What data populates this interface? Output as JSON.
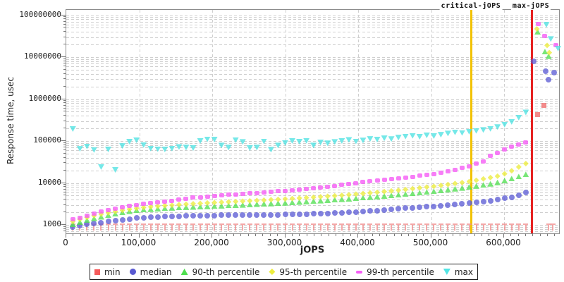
{
  "chart_data": {
    "type": "scatter",
    "title": "",
    "xlabel": "jOPS",
    "ylabel": "Response time, usec",
    "x_axis": {
      "min": 0,
      "max": 675000,
      "major_ticks": [
        0,
        100000,
        200000,
        300000,
        400000,
        500000,
        600000
      ],
      "tick_labels": [
        "0",
        "100,000",
        "200,000",
        "300,000",
        "400,000",
        "500,000",
        "600,000"
      ],
      "minor_tick_step": 10000,
      "grid_values": [
        100000,
        200000,
        300000,
        400000,
        500000,
        600000
      ]
    },
    "y_axis": {
      "scale": "log",
      "min": 630,
      "max": 130000000,
      "major_ticks": [
        1000,
        10000,
        100000,
        1000000,
        10000000,
        100000000
      ],
      "tick_labels": [
        "1000",
        "10000",
        "100000",
        "1000000",
        "10000000",
        "100000000"
      ]
    },
    "vlines": [
      {
        "name": "critical-jOPS",
        "jops": 555500,
        "color": "#f2c200"
      },
      {
        "name": "max-jOPS",
        "jops": 637700,
        "color": "#e62222"
      }
    ],
    "series": [
      {
        "name": "min",
        "marker": "tmark",
        "color": "#f29090",
        "jops_first": 9000,
        "jops_step": 9700,
        "values": [
          1000,
          1000,
          1000,
          1000,
          1000,
          1000,
          1000,
          1000,
          1000,
          1000,
          1000,
          1000,
          1000,
          1000,
          1000,
          1000,
          1000,
          1000,
          1000,
          1000,
          1000,
          1000,
          1000,
          1000,
          1000,
          1000,
          1000,
          1000,
          1000,
          1000,
          1000,
          1000,
          1000,
          1000,
          1000,
          1000,
          1000,
          1000,
          1000,
          1000,
          1000,
          1000,
          1000,
          1000,
          1000,
          1000,
          1000,
          1000,
          1000,
          1000,
          1000,
          1000,
          1000,
          1000,
          1000,
          1000,
          1000,
          1000,
          1000,
          1000,
          1000,
          1000,
          1000,
          1000,
          1000
        ],
        "extra_points": [
          [
            661000,
            1000
          ],
          [
            667000,
            1000
          ]
        ],
        "spike_marker": "square",
        "spike_color": "#ef6a6a",
        "spike_points": [
          [
            646000,
            420000
          ],
          [
            655000,
            717000
          ]
        ]
      },
      {
        "name": "median",
        "marker": "circle",
        "color": "#5d5dd5",
        "jops_first": 9000,
        "jops_step": 9700,
        "values": [
          890,
          960,
          1020,
          1080,
          1140,
          1200,
          1260,
          1320,
          1380,
          1450,
          1490,
          1520,
          1550,
          1570,
          1590,
          1610,
          1625,
          1640,
          1655,
          1665,
          1680,
          1690,
          1695,
          1700,
          1705,
          1710,
          1715,
          1725,
          1735,
          1745,
          1760,
          1775,
          1790,
          1810,
          1830,
          1855,
          1880,
          1910,
          1940,
          1975,
          2010,
          2070,
          2140,
          2210,
          2280,
          2350,
          2430,
          2490,
          2560,
          2630,
          2700,
          2780,
          2870,
          2970,
          3080,
          3190,
          3320,
          3450,
          3600,
          3790,
          4000,
          4280,
          4600,
          5100,
          5900
        ],
        "extra_points": [
          [
            641000,
            7900000
          ],
          [
            657000,
            4700000
          ],
          [
            661000,
            2900000
          ],
          [
            669000,
            4300000
          ]
        ]
      },
      {
        "name": "90-th percentile",
        "marker": "tri-up",
        "color": "#52df52",
        "jops_first": 9000,
        "jops_step": 9700,
        "values": [
          1040,
          1170,
          1300,
          1430,
          1560,
          1700,
          1840,
          1980,
          2120,
          2250,
          2310,
          2370,
          2430,
          2490,
          2540,
          2590,
          2640,
          2680,
          2720,
          2760,
          2800,
          2850,
          2900,
          2950,
          3000,
          3050,
          3110,
          3170,
          3230,
          3290,
          3350,
          3430,
          3510,
          3600,
          3690,
          3780,
          3880,
          3980,
          4080,
          4190,
          4300,
          4440,
          4580,
          4730,
          4880,
          5040,
          5200,
          5400,
          5610,
          5830,
          6060,
          6300,
          6600,
          6900,
          7250,
          7600,
          8000,
          8450,
          8950,
          9550,
          10300,
          11400,
          12700,
          14200,
          16000
        ],
        "extra_points": [
          [
            646000,
            40000000
          ],
          [
            656000,
            13500000
          ],
          [
            661000,
            10500000
          ]
        ]
      },
      {
        "name": "95-th percentile",
        "marker": "diamond",
        "color": "#ecec3c",
        "jops_first": 9000,
        "jops_step": 9700,
        "values": [
          1210,
          1360,
          1510,
          1660,
          1800,
          1950,
          2090,
          2230,
          2370,
          2500,
          2600,
          2700,
          2790,
          2880,
          2960,
          3040,
          3120,
          3190,
          3260,
          3330,
          3400,
          3470,
          3540,
          3610,
          3680,
          3750,
          3820,
          3900,
          3980,
          4060,
          4150,
          4250,
          4350,
          4460,
          4570,
          4690,
          4810,
          4940,
          5080,
          5230,
          5400,
          5590,
          5790,
          6000,
          6220,
          6450,
          6700,
          7000,
          7300,
          7620,
          7950,
          8300,
          8750,
          9200,
          9700,
          10200,
          10800,
          11600,
          12500,
          13400,
          14500,
          16500,
          19500,
          24000,
          29000
        ],
        "extra_points": [
          [
            645000,
            47000000
          ],
          [
            659000,
            19000000
          ],
          [
            662000,
            12800000
          ]
        ]
      },
      {
        "name": "99-th percentile",
        "marker": "hbar",
        "color": "#f558f5",
        "jops_first": 9000,
        "jops_step": 9700,
        "values": [
          1360,
          1450,
          1650,
          1850,
          2050,
          2250,
          2450,
          2650,
          2830,
          3000,
          3150,
          3300,
          3450,
          3600,
          3800,
          4000,
          4200,
          4450,
          4600,
          4750,
          4900,
          5050,
          5200,
          5350,
          5500,
          5650,
          5800,
          5950,
          6100,
          6300,
          6500,
          6700,
          6950,
          7200,
          7500,
          7800,
          8150,
          8550,
          8950,
          9400,
          9900,
          10400,
          10900,
          11500,
          12100,
          12400,
          12800,
          13400,
          14000,
          14800,
          15600,
          16500,
          17600,
          19000,
          20700,
          22700,
          25000,
          28500,
          33000,
          45000,
          52000,
          62000,
          72000,
          83000,
          93000
        ],
        "extra_points": [
          [
            647000,
            62000000
          ],
          [
            656000,
            32000000
          ],
          [
            671000,
            19000000
          ]
        ]
      },
      {
        "name": "max",
        "marker": "tri-down",
        "color": "#4ee2e2",
        "jops_first": 9000,
        "jops_step": 9700,
        "values": [
          193000,
          65000,
          74000,
          61000,
          24000,
          63000,
          20500,
          76000,
          96000,
          104000,
          80000,
          66000,
          64000,
          63000,
          66000,
          72000,
          70000,
          68000,
          100000,
          110000,
          108000,
          78000,
          70000,
          105000,
          95000,
          68000,
          70000,
          98000,
          62000,
          78000,
          90000,
          100000,
          96000,
          101000,
          78000,
          92000,
          88000,
          95000,
          100000,
          106000,
          98000,
          103000,
          112000,
          108000,
          116000,
          111000,
          121000,
          128000,
          133000,
          126000,
          136000,
          131000,
          141000,
          151000,
          161000,
          156000,
          166000,
          174000,
          183000,
          195000,
          215000,
          245000,
          285000,
          360000,
          480000
        ],
        "extra_points": [
          [
            658000,
            59000000
          ],
          [
            664000,
            27000000
          ],
          [
            674000,
            16000000
          ]
        ]
      }
    ],
    "layout": {
      "grid_color": "#cfcfcf",
      "border_color": "#8c8c8c",
      "legend_position": "bottom-center"
    }
  },
  "legend": {
    "items": [
      {
        "label": "min",
        "marker": "square",
        "color": "#f55b5b"
      },
      {
        "label": "median",
        "marker": "circle",
        "color": "#5a5ad2"
      },
      {
        "label": "90-th percentile",
        "marker": "tri-up",
        "color": "#4fe04f"
      },
      {
        "label": "95-th percentile",
        "marker": "diamond",
        "color": "#eded3d"
      },
      {
        "label": "99-th percentile",
        "marker": "hbar",
        "color": "#f65df6"
      },
      {
        "label": "max",
        "marker": "tri-down",
        "color": "#52e5e5"
      }
    ]
  }
}
